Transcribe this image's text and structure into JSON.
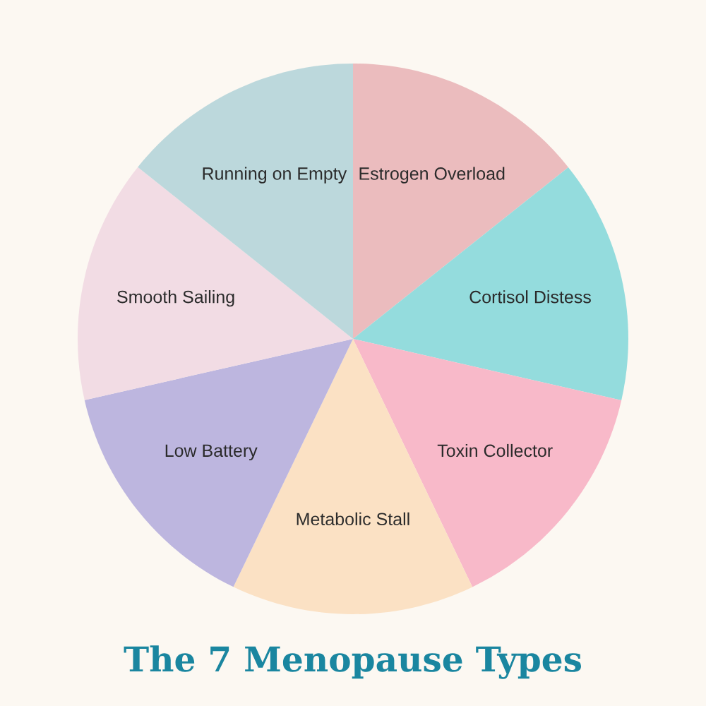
{
  "chart_data": {
    "type": "pie",
    "title": "The 7 Menopause Types",
    "categories": [
      "Estrogen Overload",
      "Cortisol Distess",
      "Toxin Collector",
      "Metabolic Stall",
      "Low Battery",
      "Smooth Sailing",
      "Running on Empty"
    ],
    "values": [
      14.29,
      14.29,
      14.28,
      14.29,
      14.28,
      14.29,
      14.28
    ],
    "colors": [
      "#ebbcbe",
      "#94dcdd",
      "#f8b9c9",
      "#fbe1c4",
      "#bdb6df",
      "#f2dce4",
      "#bcd8dc"
    ]
  }
}
